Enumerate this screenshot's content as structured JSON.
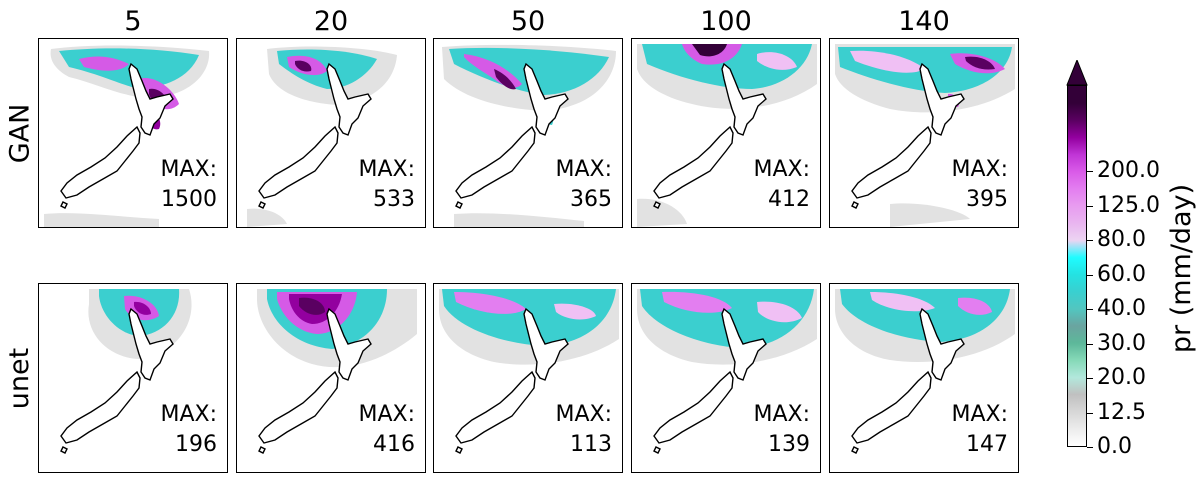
{
  "columns": [
    "5",
    "20",
    "50",
    "100",
    "140"
  ],
  "rows": [
    {
      "label": "GAN",
      "max_label": "MAX:",
      "max_values": [
        "1500",
        "533",
        "365",
        "412",
        "395"
      ]
    },
    {
      "label": "unet",
      "max_label": "MAX:",
      "max_values": [
        "196",
        "416",
        "113",
        "139",
        "147"
      ]
    }
  ],
  "colorbar": {
    "title": "pr (mm/day)",
    "tick_labels": [
      "0.0",
      "12.5",
      "20.0",
      "30.0",
      "40.0",
      "60.0",
      "80.0",
      "125.0",
      "200.0"
    ],
    "colors": [
      "#ffffff",
      "#ececec",
      "#d7d7d7",
      "#c0c0c0",
      "#b2e8dc",
      "#86d9b8",
      "#5db89a",
      "#6aa4a0",
      "#52c6c0",
      "#39d0d0",
      "#24e2e2",
      "#1ffcff",
      "#ecd4f2",
      "#e9b5f0",
      "#e89cf0",
      "#e37ef0",
      "#d95be8",
      "#c035d6",
      "#93009f",
      "#5a0061",
      "#330038"
    ],
    "extend": "max"
  },
  "colors": {
    "land_outline": "#000000",
    "light_gray": "#e2e2e2",
    "mid_gray": "#c4c4c4",
    "teal": "#3bcfcf",
    "cyan": "#1ffcff",
    "green": "#79c6ab",
    "pink": "#f0c0f4",
    "magenta": "#d55ae6",
    "purple": "#93009f",
    "dark_purple": "#3c003f"
  }
}
